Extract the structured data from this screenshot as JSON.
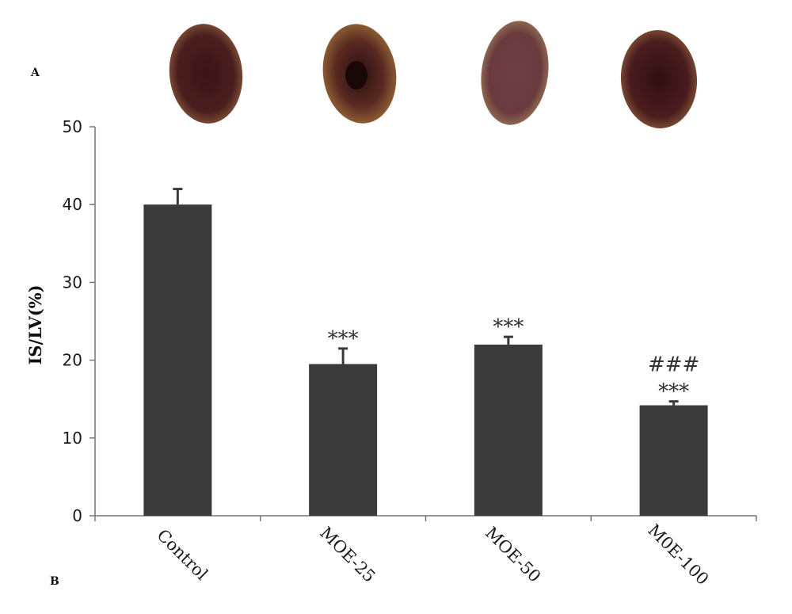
{
  "panels": {
    "a": "A",
    "b": "B"
  },
  "chart_data": {
    "type": "bar",
    "categories": [
      "Control",
      "MOE-25",
      "MOE-50",
      "M0E-100"
    ],
    "values": [
      40,
      19.5,
      22,
      14.2
    ],
    "errors": [
      2,
      2,
      1,
      0.5
    ],
    "annotations": [
      [],
      [
        "***"
      ],
      [
        "***"
      ],
      [
        "###",
        "***"
      ]
    ],
    "xlabel": "",
    "ylabel": "IS/LV(%)",
    "ylim": [
      0,
      50
    ],
    "yticks": [
      0,
      10,
      20,
      30,
      40,
      50
    ],
    "bar_color": "#3a3a3a",
    "grid": false,
    "legend": "none"
  },
  "heart_images": [
    {
      "name": "control",
      "fill": "#4a1e1e",
      "rim": "#8a5a3a"
    },
    {
      "name": "moe-25",
      "fill": "#5a2a22",
      "rim": "#8a6030"
    },
    {
      "name": "moe-50",
      "fill": "#6a3a3e",
      "rim": "#8e6a48"
    },
    {
      "name": "moe-100",
      "fill": "#4a1c1e",
      "rim": "#7a4a30"
    }
  ]
}
